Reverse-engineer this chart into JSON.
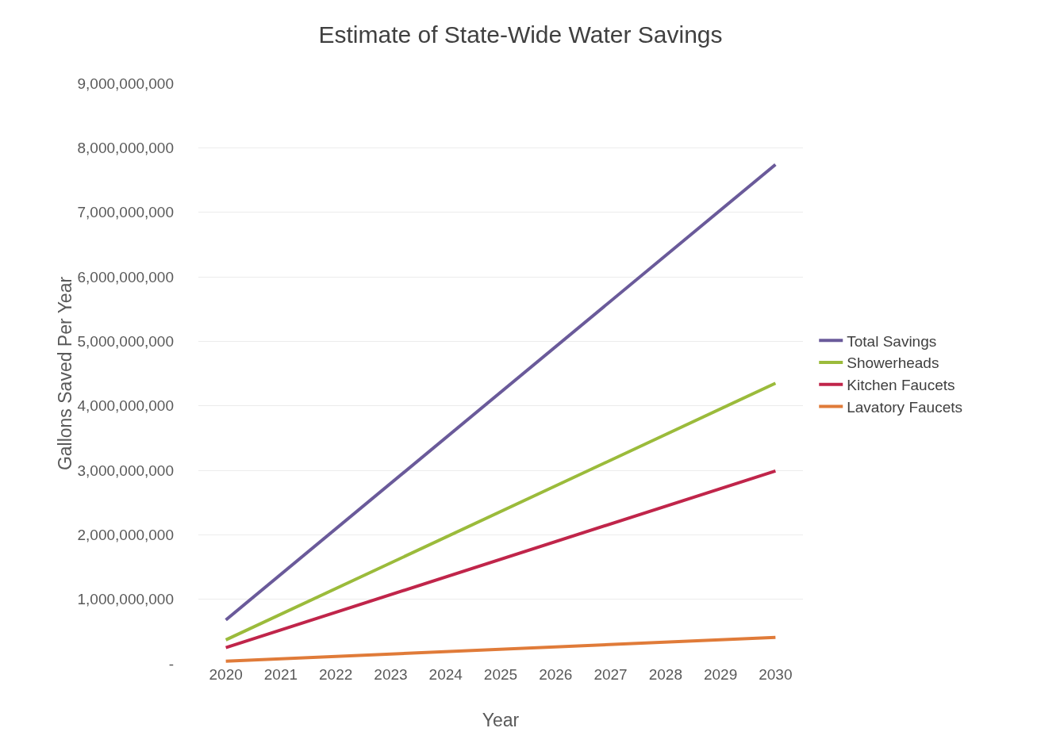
{
  "chart_data": {
    "type": "line",
    "title": "Estimate of State-Wide Water Savings",
    "xlabel": "Year",
    "ylabel": "Gallons Saved Per Year",
    "x": [
      2020,
      2030
    ],
    "series": [
      {
        "name": "Total Savings",
        "color": "#6a5a9a",
        "values": [
          680000000,
          7740000000
        ]
      },
      {
        "name": "Showerheads",
        "color": "#9bbb3b",
        "values": [
          370000000,
          4350000000
        ]
      },
      {
        "name": "Kitchen Faucets",
        "color": "#c0254a",
        "values": [
          250000000,
          2990000000
        ]
      },
      {
        "name": "Lavatory Faucets",
        "color": "#e07b39",
        "values": [
          40000000,
          410000000
        ]
      }
    ],
    "xlim": [
      2019.5,
      2030.5
    ],
    "xticks": [
      2020,
      2021,
      2022,
      2023,
      2024,
      2025,
      2026,
      2027,
      2028,
      2029,
      2030
    ],
    "ylim": [
      0,
      9000000000
    ],
    "yticks": [
      {
        "value": 0,
        "label": "-"
      },
      {
        "value": 1000000000,
        "label": "1,000,000,000"
      },
      {
        "value": 2000000000,
        "label": "2,000,000,000"
      },
      {
        "value": 3000000000,
        "label": "3,000,000,000"
      },
      {
        "value": 4000000000,
        "label": "4,000,000,000"
      },
      {
        "value": 5000000000,
        "label": "5,000,000,000"
      },
      {
        "value": 6000000000,
        "label": "6,000,000,000"
      },
      {
        "value": 7000000000,
        "label": "7,000,000,000"
      },
      {
        "value": 8000000000,
        "label": "8,000,000,000"
      },
      {
        "value": 9000000000,
        "label": "9,000,000,000"
      }
    ],
    "grid": "y",
    "legend": "right",
    "marker": "none",
    "line_style": "solid"
  }
}
